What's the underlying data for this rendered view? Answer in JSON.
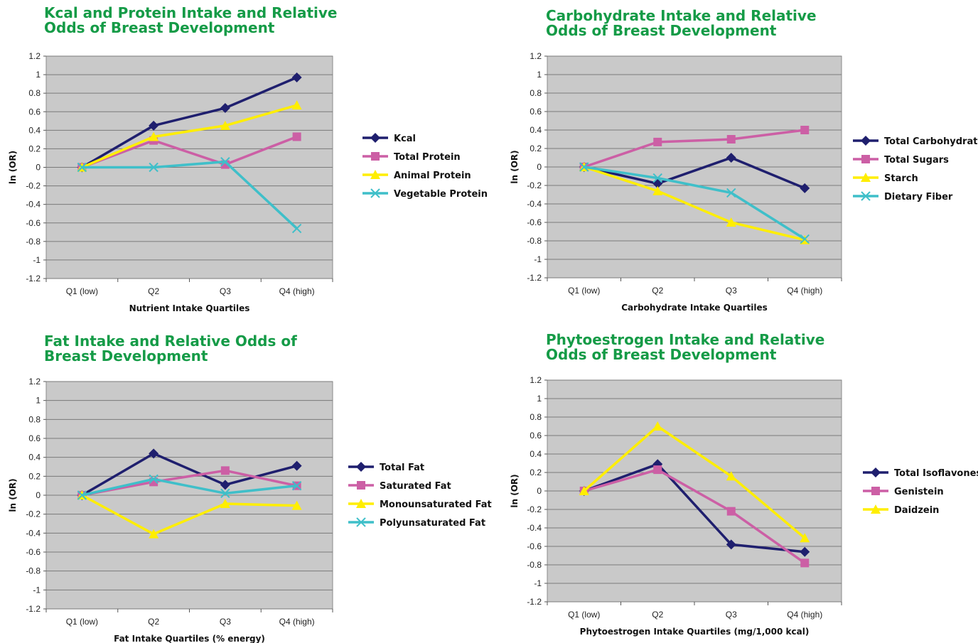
{
  "charts": [
    {
      "title": "Kcal and Protein Intake and Relative Odds of Breast Development",
      "chart_data": {
        "type": "line",
        "categories": [
          "Q1 (low)",
          "Q2",
          "Q3",
          "Q4 (high)"
        ],
        "xlabel": "Nutrient Intake Quartiles",
        "ylabel": "ln (OR)",
        "ylim": [
          -1.2,
          1.2
        ],
        "yticks": [
          "1.2",
          "1",
          "0.8",
          "0.6",
          "0.4",
          "0.2",
          "0",
          "-0.2",
          "-0.4",
          "-0.6",
          "-0.8",
          "-1",
          "-1.2"
        ],
        "grid": true,
        "legend": "right",
        "series": [
          {
            "name": "Kcal",
            "values": [
              0,
              0.45,
              0.64,
              0.97
            ],
            "color": "#1f1f6e",
            "marker": "diamond"
          },
          {
            "name": "Total Protein",
            "values": [
              0,
              0.29,
              0.03,
              0.33
            ],
            "color": "#cc5fa5",
            "marker": "square"
          },
          {
            "name": "Animal Protein",
            "values": [
              0,
              0.33,
              0.45,
              0.67
            ],
            "color": "#ffee00",
            "marker": "triangle"
          },
          {
            "name": "Vegetable Protein",
            "values": [
              0,
              0,
              0.06,
              -0.66
            ],
            "color": "#3fbfc9",
            "marker": "x"
          }
        ]
      }
    },
    {
      "title": "Carbohydrate Intake and Relative Odds of Breast Development",
      "chart_data": {
        "type": "line",
        "categories": [
          "Q1 (low)",
          "Q2",
          "Q3",
          "Q4 (high)"
        ],
        "xlabel": "Carbohydrate Intake Quartiles",
        "ylabel": "ln (OR)",
        "ylim": [
          -1.2,
          1.2
        ],
        "yticks": [
          "1.2",
          "1",
          "0.8",
          "0.6",
          "0.4",
          "0.2",
          "0",
          "-0.2",
          "-0.4",
          "-0.6",
          "-0.8",
          "-1",
          "-1.2"
        ],
        "grid": true,
        "legend": "right",
        "series": [
          {
            "name": "Total Carbohydrate",
            "values": [
              0,
              -0.18,
              0.1,
              -0.23
            ],
            "color": "#1f1f6e",
            "marker": "diamond"
          },
          {
            "name": "Total Sugars",
            "values": [
              0,
              0.27,
              0.3,
              0.4
            ],
            "color": "#cc5fa5",
            "marker": "square"
          },
          {
            "name": "Starch",
            "values": [
              0,
              -0.26,
              -0.6,
              -0.79
            ],
            "color": "#ffee00",
            "marker": "triangle"
          },
          {
            "name": "Dietary Fiber",
            "values": [
              0,
              -0.12,
              -0.28,
              -0.78
            ],
            "color": "#3fbfc9",
            "marker": "x"
          }
        ]
      }
    },
    {
      "title": "Fat Intake and Relative Odds of Breast Development",
      "chart_data": {
        "type": "line",
        "categories": [
          "Q1 (low)",
          "Q2",
          "Q3",
          "Q4 (high)"
        ],
        "xlabel": "Fat Intake Quartiles (% energy)",
        "ylabel": "ln (OR)",
        "ylim": [
          -1.2,
          1.2
        ],
        "yticks": [
          "1.2",
          "1",
          "0.8",
          "0.6",
          "0.4",
          "0.2",
          "0",
          "-0.2",
          "-0.4",
          "-0.6",
          "-0.8",
          "-1",
          "-1.2"
        ],
        "grid": true,
        "legend": "right",
        "series": [
          {
            "name": "Total Fat",
            "values": [
              0,
              0.44,
              0.11,
              0.31
            ],
            "color": "#1f1f6e",
            "marker": "diamond"
          },
          {
            "name": "Saturated Fat",
            "values": [
              0,
              0.14,
              0.26,
              0.1
            ],
            "color": "#cc5fa5",
            "marker": "square"
          },
          {
            "name": "Monounsaturated Fat",
            "values": [
              0,
              -0.41,
              -0.09,
              -0.11
            ],
            "color": "#ffee00",
            "marker": "triangle"
          },
          {
            "name": "Polyunsaturated Fat",
            "values": [
              0,
              0.17,
              0.02,
              0.1
            ],
            "color": "#3fbfc9",
            "marker": "x"
          }
        ]
      }
    },
    {
      "title": "Phytoestrogen Intake and Relative Odds of Breast Development",
      "chart_data": {
        "type": "line",
        "categories": [
          "Q1 (low)",
          "Q2",
          "Q3",
          "Q4 (high)"
        ],
        "xlabel": "Phytoestrogen Intake Quartiles (mg/1,000 kcal)",
        "ylabel": "ln (OR)",
        "ylim": [
          -1.2,
          1.2
        ],
        "yticks": [
          "1.2",
          "1",
          "0.8",
          "0.6",
          "0.4",
          "0.2",
          "0",
          "-0.2",
          "-0.4",
          "-0.6",
          "-0.8",
          "-1",
          "-1.2"
        ],
        "grid": true,
        "legend": "right",
        "series": [
          {
            "name": "Total Isoflavones",
            "values": [
              0,
              0.29,
              -0.58,
              -0.66
            ],
            "color": "#1f1f6e",
            "marker": "diamond"
          },
          {
            "name": "Genistein",
            "values": [
              0,
              0.23,
              -0.22,
              -0.78
            ],
            "color": "#cc5fa5",
            "marker": "square"
          },
          {
            "name": "Daidzein",
            "values": [
              0,
              0.7,
              0.16,
              -0.51
            ],
            "color": "#ffee00",
            "marker": "triangle"
          }
        ]
      }
    }
  ]
}
